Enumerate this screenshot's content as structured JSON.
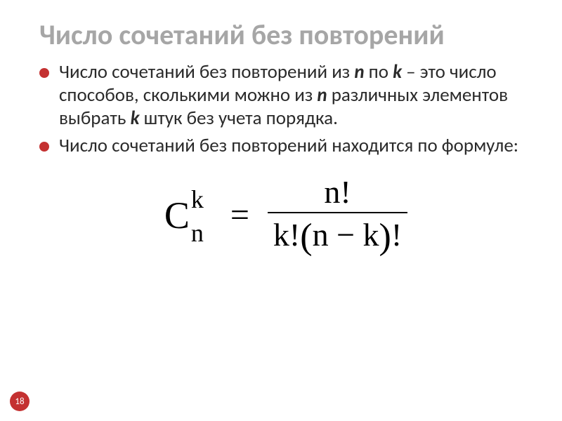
{
  "colors": {
    "title": "#a6a6a6",
    "body_text": "#2b2b2b",
    "bullet": "#c43131",
    "formula_text": "#000000",
    "frac_line": "#000000",
    "slide_num_bg": "#c43131",
    "slide_num_text": "#ffffff",
    "background": "#ffffff"
  },
  "title": "Число сочетаний без повторений",
  "bullets": [
    {
      "parts": [
        {
          "t": "Число сочетаний без повторений из ",
          "i": false
        },
        {
          "t": "n",
          "i": true
        },
        {
          "t": " по ",
          "i": false
        },
        {
          "t": "k",
          "i": true
        },
        {
          "t": " – это число способов, сколькими можно из ",
          "i": false
        },
        {
          "t": "n",
          "i": true
        },
        {
          "t": " различных элементов выбрать ",
          "i": false
        },
        {
          "t": "k",
          "i": true
        },
        {
          "t": " штук без учета порядка.",
          "i": false
        }
      ]
    },
    {
      "parts": [
        {
          "t": "Число сочетаний без повторений находится по формуле:",
          "i": false
        }
      ]
    }
  ],
  "formula": {
    "base": "C",
    "sup": "k",
    "sub": "n",
    "eq": "=",
    "numerator": "n!",
    "den_left": "k!",
    "den_paren_open": "(",
    "den_inner": "n − k",
    "den_paren_close": ")",
    "den_fact": "!"
  },
  "slide_number": "18"
}
